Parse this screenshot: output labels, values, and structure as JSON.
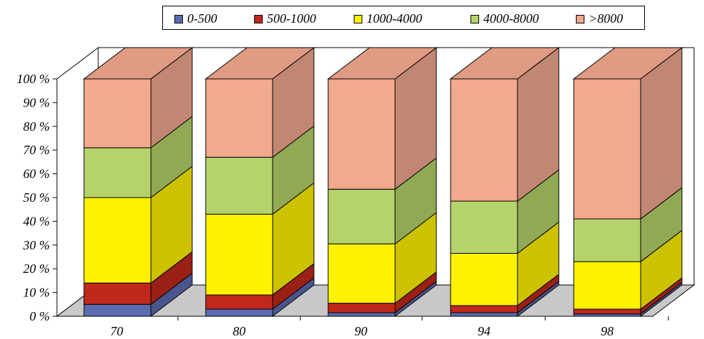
{
  "chart_data": {
    "type": "bar",
    "stacked": true,
    "percent": true,
    "three_d": true,
    "categories": [
      "70",
      "80",
      "90",
      "94",
      "98"
    ],
    "series": [
      {
        "name": "0-500",
        "color": "#5b6bb0",
        "values": [
          5,
          3,
          1.5,
          1.5,
          1
        ]
      },
      {
        "name": "500-1000",
        "color": "#c0281c",
        "values": [
          9,
          6,
          4,
          3,
          2
        ]
      },
      {
        "name": "1000-4000",
        "color": "#fff200",
        "values": [
          36,
          34,
          25,
          22,
          20
        ]
      },
      {
        "name": "4000-8000",
        "color": "#b5d36a",
        "values": [
          21,
          24,
          23,
          22,
          18
        ]
      },
      {
        "name": ">8000",
        "color": "#f2a98e",
        "values": [
          29,
          33,
          46.5,
          51.5,
          59
        ]
      }
    ],
    "ylim": [
      0,
      100
    ],
    "yticks": [
      "0 %",
      "10 %",
      "20 %",
      "30 %",
      "40 %",
      "50 %",
      "60 %",
      "70 %",
      "80 %",
      "90 %",
      "100 %"
    ],
    "legend_position": "top",
    "grid": false
  }
}
